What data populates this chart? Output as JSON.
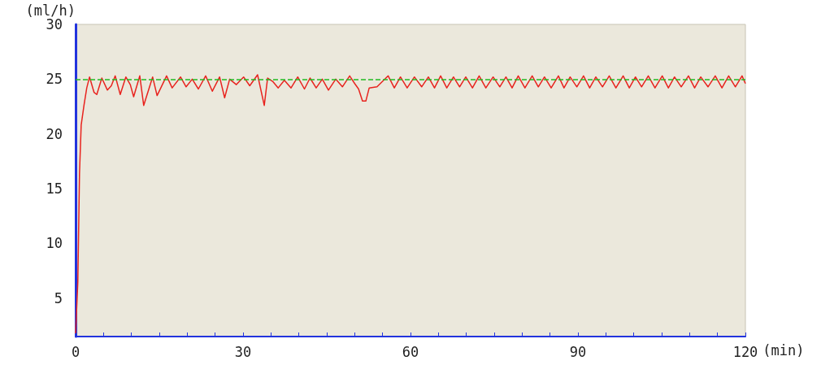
{
  "chart_data": {
    "type": "line",
    "xlabel": "(min)",
    "ylabel": "(ml/h)",
    "xlim": [
      0,
      120
    ],
    "ylim": [
      1.5,
      30
    ],
    "xticks": [
      0,
      {
        "value": 5,
        "label": null
      },
      {
        "value": 10,
        "label": null
      },
      {
        "value": 15,
        "label": null
      },
      {
        "value": 20,
        "label": null
      },
      {
        "value": 25,
        "label": null
      },
      30,
      {
        "value": 35,
        "label": null
      },
      {
        "value": 40,
        "label": null
      },
      {
        "value": 45,
        "label": null
      },
      {
        "value": 50,
        "label": null
      },
      {
        "value": 55,
        "label": null
      },
      60,
      {
        "value": 65,
        "label": null
      },
      {
        "value": 70,
        "label": null
      },
      {
        "value": 75,
        "label": null
      },
      {
        "value": 80,
        "label": null
      },
      {
        "value": 85,
        "label": null
      },
      90,
      {
        "value": 95,
        "label": null
      },
      {
        "value": 100,
        "label": null
      },
      {
        "value": 105,
        "label": null
      },
      {
        "value": 110,
        "label": null
      },
      {
        "value": 115,
        "label": null
      },
      120
    ],
    "yticks": [
      5,
      10,
      15,
      20,
      25,
      30
    ],
    "grid": false,
    "marker": "none",
    "line_style": "solid",
    "ref_lines": [
      {
        "axis": "y",
        "value": 25,
        "label": null,
        "color": "#22bb22",
        "line_style": "dashed"
      }
    ],
    "series": [
      {
        "color": "#e8231e",
        "x": [
          0,
          0.4,
          0.7,
          1,
          1.5,
          2,
          2.5,
          3.3,
          3.8,
          4.7,
          5.7,
          6.4,
          7.1,
          8.0,
          9.0,
          9.8,
          10.4,
          11.5,
          12.2,
          13.8,
          14.6,
          16.3,
          17.3,
          18.8,
          19.8,
          20.9,
          22.0,
          23.3,
          24.5,
          25.8,
          26.7,
          27.6,
          28.8,
          30.1,
          31.2,
          32.6,
          33.8,
          34.4,
          35.3,
          36.3,
          37.4,
          38.6,
          39.8,
          41.0,
          42.0,
          43.1,
          44.2,
          45.3,
          46.6,
          47.8,
          49.1,
          50.0,
          50.7,
          51.4,
          52.0,
          52.6,
          54.0,
          55.0,
          56.0,
          57.1,
          58.2,
          59.4,
          60.7,
          62.0,
          63.2,
          64.3,
          65.4,
          66.5,
          67.7,
          68.8,
          69.9,
          71.1,
          72.3,
          73.5,
          74.8,
          76.0,
          77.1,
          78.2,
          79.3,
          80.5,
          81.8,
          82.9,
          84.0,
          85.2,
          86.5,
          87.5,
          88.6,
          89.8,
          91.0,
          92.1,
          93.2,
          94.4,
          95.6,
          96.8,
          98.1,
          99.2,
          100.3,
          101.4,
          102.6,
          103.8,
          105.1,
          106.2,
          107.3,
          108.5,
          109.8,
          110.9,
          112.0,
          113.3,
          114.6,
          115.8,
          117.0,
          118.2,
          119.4,
          120
        ],
        "values": [
          1.8,
          6.5,
          16.4,
          20.8,
          22.6,
          24.2,
          25.2,
          23.8,
          23.6,
          25.1,
          24.0,
          24.4,
          25.3,
          23.6,
          25.2,
          24.5,
          23.4,
          25.3,
          22.6,
          25.2,
          23.5,
          25.3,
          24.2,
          25.2,
          24.3,
          25.0,
          24.1,
          25.3,
          23.9,
          25.2,
          23.3,
          25.0,
          24.5,
          25.2,
          24.4,
          25.4,
          22.6,
          25.1,
          24.8,
          24.2,
          24.9,
          24.2,
          25.2,
          24.1,
          25.1,
          24.2,
          25.0,
          24.0,
          25.0,
          24.3,
          25.3,
          24.6,
          24.1,
          23.0,
          23.0,
          24.2,
          24.3,
          24.8,
          25.3,
          24.2,
          25.2,
          24.2,
          25.2,
          24.3,
          25.2,
          24.2,
          25.3,
          24.2,
          25.2,
          24.3,
          25.2,
          24.2,
          25.3,
          24.2,
          25.2,
          24.3,
          25.2,
          24.2,
          25.3,
          24.2,
          25.3,
          24.3,
          25.2,
          24.2,
          25.3,
          24.2,
          25.2,
          24.3,
          25.3,
          24.2,
          25.2,
          24.3,
          25.3,
          24.2,
          25.3,
          24.2,
          25.2,
          24.3,
          25.3,
          24.2,
          25.3,
          24.2,
          25.2,
          24.3,
          25.3,
          24.2,
          25.2,
          24.3,
          25.3,
          24.2,
          25.3,
          24.3,
          25.3,
          24.6
        ]
      }
    ]
  }
}
